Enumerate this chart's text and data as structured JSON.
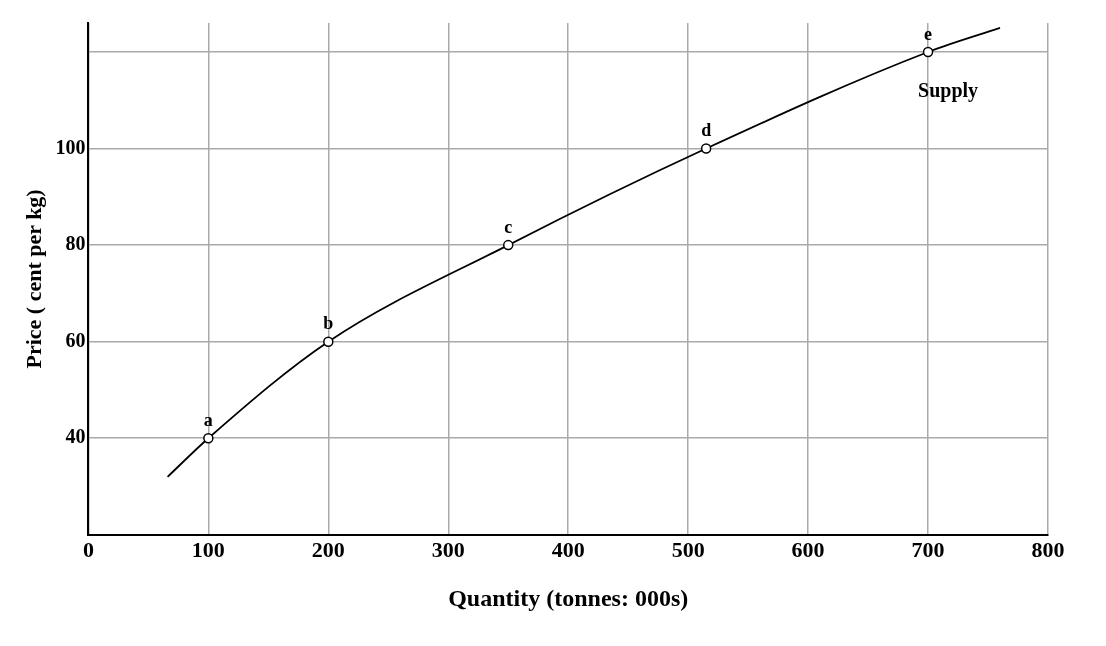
{
  "chart_data": {
    "type": "line",
    "xlabel": "Quantity (tonnes: 000s)",
    "ylabel": "Price ( cent per kg)",
    "xlim": [
      0,
      800
    ],
    "xticks": [
      0,
      100,
      200,
      300,
      400,
      500,
      600,
      700,
      800
    ],
    "ylim": [
      20,
      126
    ],
    "yticks": [
      {
        "value": 20,
        "label": null
      },
      40,
      60,
      80,
      100,
      {
        "value": 120,
        "label": null
      }
    ],
    "grid": true,
    "legend": false,
    "series": [
      {
        "name": "Supply",
        "color": "#000000",
        "marker": "none",
        "x": [
          66,
          100,
          200,
          350,
          515,
          700,
          760
        ],
        "values": [
          32,
          40,
          60,
          80,
          100,
          120,
          125
        ]
      },
      {
        "type": "scatter",
        "color": "#000000",
        "marker": "circle",
        "x": [
          100,
          200,
          350,
          515,
          700
        ],
        "values": [
          40,
          60,
          80,
          100,
          120
        ]
      }
    ],
    "annotations": [
      {
        "text": "a",
        "x": 100,
        "y": 40
      },
      {
        "text": "b",
        "x": 200,
        "y": 60
      },
      {
        "text": "c",
        "x": 350,
        "y": 80
      },
      {
        "text": "d",
        "x": 515,
        "y": 100
      },
      {
        "text": "e",
        "x": 700,
        "y": 120
      }
    ]
  }
}
